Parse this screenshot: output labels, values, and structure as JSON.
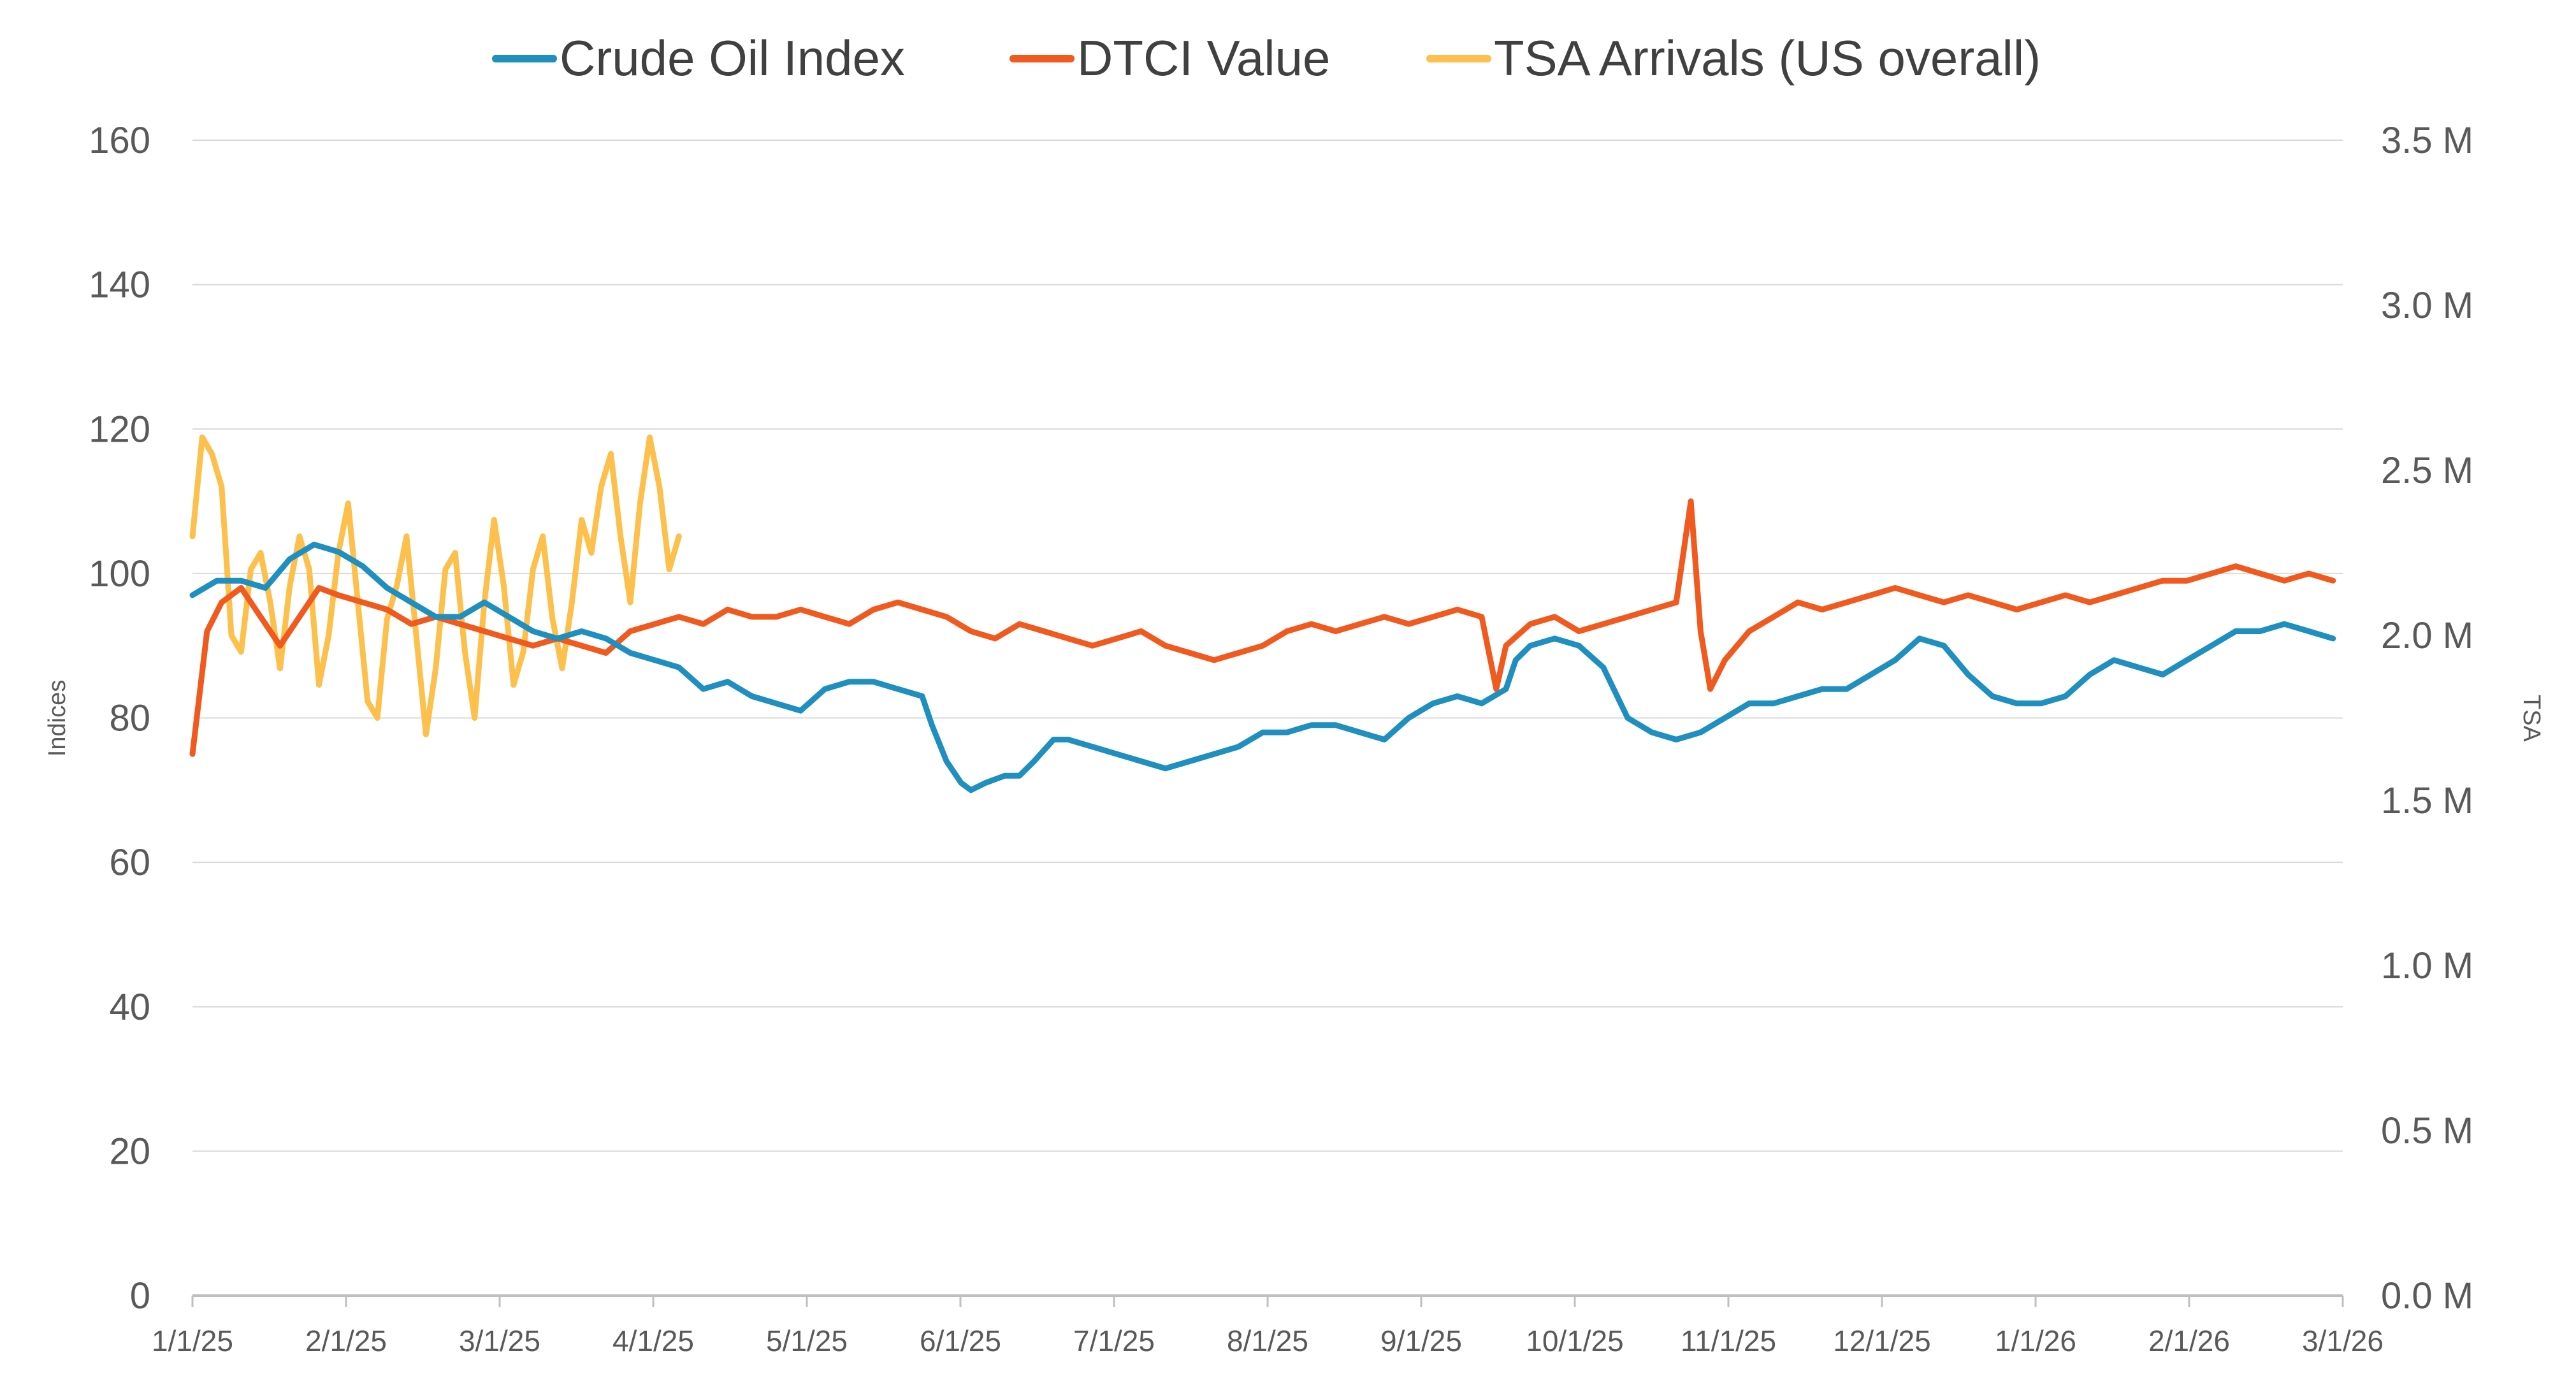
{
  "chart_data": {
    "type": "line",
    "title": "",
    "legend": [
      "Crude Oil Index",
      "DTCI Value",
      "TSA Arrivals (US overall)"
    ],
    "legend_position": "top",
    "grid": true,
    "colors": {
      "crude": "#1f8fbf",
      "dtci": "#f05a1e",
      "tsa": "#fdc04c",
      "grid": "#d9d9d9",
      "axis": "#bfbfbf"
    },
    "x_categories": [
      "1/1/25",
      "2/1/25",
      "3/1/25",
      "4/1/25",
      "5/1/25",
      "6/1/25",
      "7/1/25",
      "8/1/25",
      "9/1/25",
      "10/1/25",
      "11/1/25",
      "12/1/25",
      "1/1/26",
      "2/1/26",
      "3/1/26"
    ],
    "x_range_days": [
      0,
      442
    ],
    "y_left": {
      "label": "Indices",
      "range": [
        0,
        160
      ],
      "ticks": [
        "0",
        "20",
        "40",
        "60",
        "80",
        "100",
        "120",
        "140",
        "160"
      ]
    },
    "y_right": {
      "label": "TSA",
      "range": [
        0,
        3.5
      ],
      "unit": "M",
      "ticks": [
        "0.0 M",
        "0.5 M",
        "1.0 M",
        "1.5 M",
        "2.0 M",
        "2.5 M",
        "3.0 M",
        "3.5 M"
      ]
    },
    "series": [
      {
        "name": "Crude Oil Index",
        "axis": "left",
        "points": [
          [
            0,
            97
          ],
          [
            5,
            99
          ],
          [
            10,
            99
          ],
          [
            15,
            98
          ],
          [
            20,
            102
          ],
          [
            25,
            104
          ],
          [
            30,
            103
          ],
          [
            35,
            101
          ],
          [
            40,
            98
          ],
          [
            45,
            96
          ],
          [
            50,
            94
          ],
          [
            55,
            94
          ],
          [
            60,
            96
          ],
          [
            65,
            94
          ],
          [
            70,
            92
          ],
          [
            75,
            91
          ],
          [
            80,
            92
          ],
          [
            85,
            91
          ],
          [
            90,
            89
          ],
          [
            95,
            88
          ],
          [
            100,
            87
          ],
          [
            105,
            84
          ],
          [
            110,
            85
          ],
          [
            115,
            83
          ],
          [
            120,
            82
          ],
          [
            125,
            81
          ],
          [
            130,
            84
          ],
          [
            135,
            85
          ],
          [
            140,
            85
          ],
          [
            145,
            84
          ],
          [
            150,
            83
          ],
          [
            152,
            79
          ],
          [
            155,
            74
          ],
          [
            158,
            71
          ],
          [
            160,
            70
          ],
          [
            163,
            71
          ],
          [
            167,
            72
          ],
          [
            170,
            72
          ],
          [
            173,
            74
          ],
          [
            177,
            77
          ],
          [
            180,
            77
          ],
          [
            185,
            76
          ],
          [
            190,
            75
          ],
          [
            195,
            74
          ],
          [
            200,
            73
          ],
          [
            205,
            74
          ],
          [
            210,
            75
          ],
          [
            215,
            76
          ],
          [
            220,
            78
          ],
          [
            225,
            78
          ],
          [
            230,
            79
          ],
          [
            235,
            79
          ],
          [
            240,
            78
          ],
          [
            245,
            77
          ],
          [
            250,
            80
          ],
          [
            255,
            82
          ],
          [
            260,
            83
          ],
          [
            265,
            82
          ],
          [
            270,
            84
          ],
          [
            272,
            88
          ],
          [
            275,
            90
          ],
          [
            280,
            91
          ],
          [
            285,
            90
          ],
          [
            290,
            87
          ],
          [
            295,
            80
          ],
          [
            300,
            78
          ],
          [
            305,
            77
          ],
          [
            310,
            78
          ],
          [
            315,
            80
          ],
          [
            320,
            82
          ],
          [
            325,
            82
          ],
          [
            330,
            83
          ],
          [
            335,
            84
          ],
          [
            340,
            84
          ],
          [
            345,
            86
          ],
          [
            350,
            88
          ],
          [
            355,
            91
          ],
          [
            360,
            90
          ],
          [
            365,
            86
          ],
          [
            370,
            83
          ],
          [
            375,
            82
          ],
          [
            380,
            82
          ],
          [
            385,
            83
          ],
          [
            390,
            86
          ],
          [
            395,
            88
          ],
          [
            400,
            87
          ],
          [
            405,
            86
          ],
          [
            410,
            88
          ],
          [
            415,
            90
          ],
          [
            420,
            92
          ],
          [
            425,
            92
          ],
          [
            430,
            93
          ],
          [
            435,
            92
          ],
          [
            440,
            91
          ]
        ]
      },
      {
        "name": "DTCI Value",
        "axis": "left",
        "points": [
          [
            0,
            75
          ],
          [
            3,
            92
          ],
          [
            6,
            96
          ],
          [
            10,
            98
          ],
          [
            14,
            94
          ],
          [
            18,
            90
          ],
          [
            22,
            94
          ],
          [
            26,
            98
          ],
          [
            30,
            97
          ],
          [
            35,
            96
          ],
          [
            40,
            95
          ],
          [
            45,
            93
          ],
          [
            50,
            94
          ],
          [
            55,
            93
          ],
          [
            60,
            92
          ],
          [
            65,
            91
          ],
          [
            70,
            90
          ],
          [
            75,
            91
          ],
          [
            80,
            90
          ],
          [
            85,
            89
          ],
          [
            90,
            92
          ],
          [
            95,
            93
          ],
          [
            100,
            94
          ],
          [
            105,
            93
          ],
          [
            110,
            95
          ],
          [
            115,
            94
          ],
          [
            120,
            94
          ],
          [
            125,
            95
          ],
          [
            130,
            94
          ],
          [
            135,
            93
          ],
          [
            140,
            95
          ],
          [
            145,
            96
          ],
          [
            150,
            95
          ],
          [
            155,
            94
          ],
          [
            160,
            92
          ],
          [
            165,
            91
          ],
          [
            170,
            93
          ],
          [
            175,
            92
          ],
          [
            180,
            91
          ],
          [
            185,
            90
          ],
          [
            190,
            91
          ],
          [
            195,
            92
          ],
          [
            200,
            90
          ],
          [
            205,
            89
          ],
          [
            210,
            88
          ],
          [
            215,
            89
          ],
          [
            220,
            90
          ],
          [
            225,
            92
          ],
          [
            230,
            93
          ],
          [
            235,
            92
          ],
          [
            240,
            93
          ],
          [
            245,
            94
          ],
          [
            250,
            93
          ],
          [
            255,
            94
          ],
          [
            260,
            95
          ],
          [
            265,
            94
          ],
          [
            268,
            84
          ],
          [
            270,
            90
          ],
          [
            275,
            93
          ],
          [
            280,
            94
          ],
          [
            285,
            92
          ],
          [
            290,
            93
          ],
          [
            295,
            94
          ],
          [
            300,
            95
          ],
          [
            305,
            96
          ],
          [
            308,
            110
          ],
          [
            310,
            92
          ],
          [
            312,
            84
          ],
          [
            315,
            88
          ],
          [
            320,
            92
          ],
          [
            325,
            94
          ],
          [
            330,
            96
          ],
          [
            335,
            95
          ],
          [
            340,
            96
          ],
          [
            345,
            97
          ],
          [
            350,
            98
          ],
          [
            355,
            97
          ],
          [
            360,
            96
          ],
          [
            365,
            97
          ],
          [
            370,
            96
          ],
          [
            375,
            95
          ],
          [
            380,
            96
          ],
          [
            385,
            97
          ],
          [
            390,
            96
          ],
          [
            395,
            97
          ],
          [
            400,
            98
          ],
          [
            405,
            99
          ],
          [
            410,
            99
          ],
          [
            415,
            100
          ],
          [
            420,
            101
          ],
          [
            425,
            100
          ],
          [
            430,
            99
          ],
          [
            435,
            100
          ],
          [
            440,
            99
          ]
        ]
      },
      {
        "name": "TSA Arrivals (US overall)",
        "axis": "right",
        "points": [
          [
            0,
            2.3
          ],
          [
            2,
            2.6
          ],
          [
            4,
            2.55
          ],
          [
            6,
            2.45
          ],
          [
            8,
            2.0
          ],
          [
            10,
            1.95
          ],
          [
            12,
            2.2
          ],
          [
            14,
            2.25
          ],
          [
            16,
            2.1
          ],
          [
            18,
            1.9
          ],
          [
            20,
            2.15
          ],
          [
            22,
            2.3
          ],
          [
            24,
            2.2
          ],
          [
            26,
            1.85
          ],
          [
            28,
            2.0
          ],
          [
            30,
            2.25
          ],
          [
            32,
            2.4
          ],
          [
            34,
            2.1
          ],
          [
            36,
            1.8
          ],
          [
            38,
            1.75
          ],
          [
            40,
            2.05
          ],
          [
            42,
            2.15
          ],
          [
            44,
            2.3
          ],
          [
            46,
            2.0
          ],
          [
            48,
            1.7
          ],
          [
            50,
            1.9
          ],
          [
            52,
            2.2
          ],
          [
            54,
            2.25
          ],
          [
            56,
            1.95
          ],
          [
            58,
            1.75
          ],
          [
            60,
            2.1
          ],
          [
            62,
            2.35
          ],
          [
            64,
            2.15
          ],
          [
            66,
            1.85
          ],
          [
            68,
            1.95
          ],
          [
            70,
            2.2
          ],
          [
            72,
            2.3
          ],
          [
            74,
            2.05
          ],
          [
            76,
            1.9
          ],
          [
            78,
            2.1
          ],
          [
            80,
            2.35
          ],
          [
            82,
            2.25
          ],
          [
            84,
            2.45
          ],
          [
            86,
            2.55
          ],
          [
            88,
            2.3
          ],
          [
            90,
            2.1
          ],
          [
            92,
            2.4
          ],
          [
            94,
            2.6
          ],
          [
            96,
            2.45
          ],
          [
            98,
            2.2
          ],
          [
            100,
            2.3
          ]
        ]
      }
    ]
  }
}
